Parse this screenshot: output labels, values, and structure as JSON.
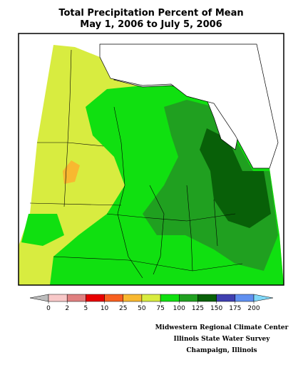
{
  "header": {
    "title_lines": [
      "Total Precipitation Percent of Mean",
      "May 1, 2006 to July 5, 2006"
    ]
  },
  "legend": {
    "ticks": [
      0,
      2,
      5,
      10,
      25,
      50,
      75,
      100,
      125,
      150,
      175,
      200
    ],
    "colors": [
      "#bcbcbc",
      "#f8c8c8",
      "#e08080",
      "#e80000",
      "#f86020",
      "#f8b830",
      "#d8ec40",
      "#10e010",
      "#20a020",
      "#086008",
      "#4040b0",
      "#6090f0",
      "#80d8f8"
    ]
  },
  "credits": [
    "Midwestern Regional Climate Center",
    "Illinois State Water Survey",
    "Champaign, Illinois"
  ]
}
